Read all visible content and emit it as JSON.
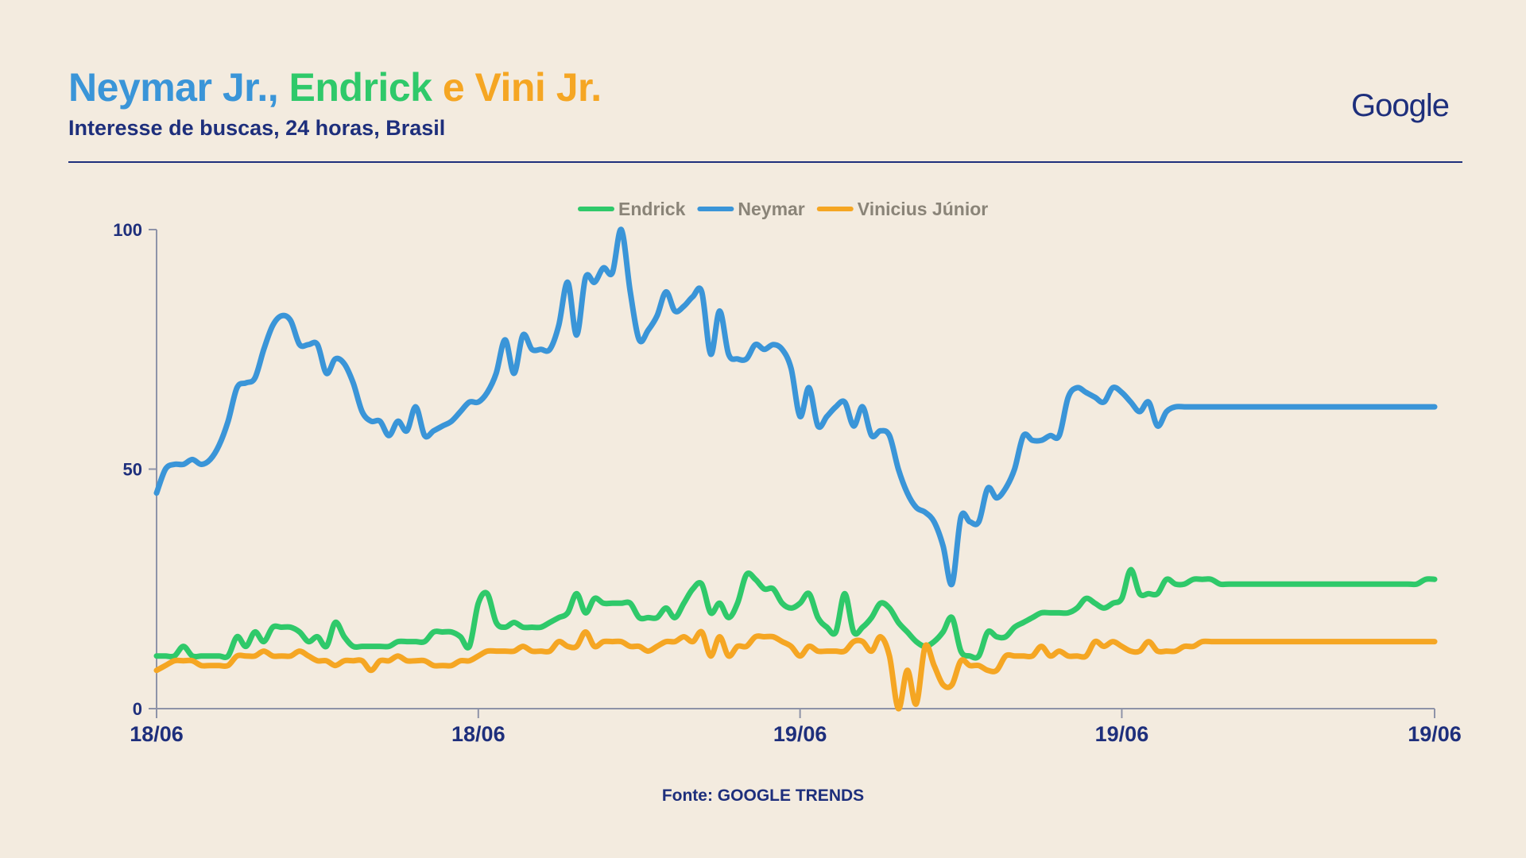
{
  "header": {
    "title_parts": [
      {
        "text": "Neymar Jr.,",
        "color": "#3A95D8"
      },
      {
        "text": " Endrick",
        "color": "#2FC96A"
      },
      {
        "text": " e",
        "color": "#F5A623"
      },
      {
        "text": " Vini Jr.",
        "color": "#F5A623"
      }
    ],
    "subtitle": "Interesse de buscas, 24 horas, Brasil",
    "brand": "Google"
  },
  "footer": {
    "source": "Fonte: GOOGLE TRENDS"
  },
  "chart_data": {
    "type": "line",
    "title": "Neymar Jr., Endrick e Vini Jr.",
    "subtitle": "Interesse de buscas, 24 horas, Brasil",
    "ylim": [
      0,
      100
    ],
    "yticks": [
      0,
      50,
      100
    ],
    "x_count": 144,
    "xticks": [
      {
        "index": 0,
        "label": "18/06"
      },
      {
        "index": 36,
        "label": "18/06"
      },
      {
        "index": 72,
        "label": "19/06"
      },
      {
        "index": 108,
        "label": "19/06"
      },
      {
        "index": 143,
        "label": "19/06"
      }
    ],
    "grid": false,
    "legend_position": "top-center",
    "legend": [
      "Endrick",
      "Neymar",
      "Vinicius Júnior"
    ],
    "series": [
      {
        "name": "Endrick",
        "color": "#2FC96A",
        "values": [
          11,
          11,
          11,
          13,
          11,
          11,
          11,
          11,
          11,
          15,
          13,
          16,
          14,
          17,
          17,
          17,
          16,
          14,
          15,
          13,
          18,
          15,
          13,
          13,
          13,
          13,
          13,
          14,
          14,
          14,
          14,
          16,
          16,
          16,
          15,
          13,
          22,
          24,
          18,
          17,
          18,
          17,
          17,
          17,
          18,
          19,
          20,
          24,
          20,
          23,
          22,
          22,
          22,
          22,
          19,
          19,
          19,
          21,
          19,
          22,
          25,
          26,
          20,
          22,
          19,
          22,
          28,
          27,
          25,
          25,
          22,
          21,
          22,
          24,
          19,
          17,
          16,
          24,
          16,
          17,
          19,
          22,
          21,
          18,
          16,
          14,
          13,
          14,
          16,
          19,
          12,
          11,
          11,
          16,
          15,
          15,
          17,
          18,
          19,
          20,
          20,
          20,
          20,
          21,
          23,
          22,
          21,
          22,
          23,
          29,
          24,
          24,
          24,
          27,
          26,
          26,
          27,
          27,
          27,
          26,
          26,
          26,
          26,
          26,
          26,
          26,
          26,
          26,
          26,
          26,
          26,
          26,
          26,
          26,
          26,
          26,
          26,
          26,
          26,
          26,
          26,
          26,
          27,
          27
        ]
      },
      {
        "name": "Neymar",
        "color": "#3A95D8",
        "values": [
          45,
          50,
          51,
          51,
          52,
          51,
          52,
          55,
          60,
          67,
          68,
          69,
          75,
          80,
          82,
          81,
          76,
          76,
          76,
          70,
          73,
          72,
          68,
          62,
          60,
          60,
          57,
          60,
          58,
          63,
          57,
          58,
          59,
          60,
          62,
          64,
          64,
          66,
          70,
          77,
          70,
          78,
          75,
          75,
          75,
          80,
          89,
          78,
          90,
          89,
          92,
          91,
          100,
          87,
          77,
          79,
          82,
          87,
          83,
          84,
          86,
          87,
          74,
          83,
          74,
          73,
          73,
          76,
          75,
          76,
          75,
          71,
          61,
          67,
          59,
          61,
          63,
          64,
          59,
          63,
          57,
          58,
          57,
          50,
          45,
          42,
          41,
          39,
          34,
          26,
          40,
          39,
          39,
          46,
          44,
          46,
          50,
          57,
          56,
          56,
          57,
          57,
          65,
          67,
          66,
          65,
          64,
          67,
          66,
          64,
          62,
          64,
          59,
          62,
          63,
          63,
          63,
          63,
          63,
          63,
          63,
          63,
          63,
          63,
          63,
          63,
          63,
          63,
          63,
          63,
          63,
          63,
          63,
          63,
          63,
          63,
          63,
          63,
          63,
          63,
          63,
          63,
          63,
          63
        ]
      },
      {
        "name": "Vinicius Júnior",
        "color": "#F5A623",
        "values": [
          8,
          9,
          10,
          10,
          10,
          9,
          9,
          9,
          9,
          11,
          11,
          11,
          12,
          11,
          11,
          11,
          12,
          11,
          10,
          10,
          9,
          10,
          10,
          10,
          8,
          10,
          10,
          11,
          10,
          10,
          10,
          9,
          9,
          9,
          10,
          10,
          11,
          12,
          12,
          12,
          12,
          13,
          12,
          12,
          12,
          14,
          13,
          13,
          16,
          13,
          14,
          14,
          14,
          13,
          13,
          12,
          13,
          14,
          14,
          15,
          14,
          16,
          11,
          15,
          11,
          13,
          13,
          15,
          15,
          15,
          14,
          13,
          11,
          13,
          12,
          12,
          12,
          12,
          14,
          14,
          12,
          15,
          11,
          0,
          8,
          1,
          13,
          9,
          5,
          5,
          10,
          9,
          9,
          8,
          8,
          11,
          11,
          11,
          11,
          13,
          11,
          12,
          11,
          11,
          11,
          14,
          13,
          14,
          13,
          12,
          12,
          14,
          12,
          12,
          12,
          13,
          13,
          14,
          14,
          14,
          14,
          14,
          14,
          14,
          14,
          14,
          14,
          14,
          14,
          14,
          14,
          14,
          14,
          14,
          14,
          14,
          14,
          14,
          14,
          14,
          14,
          14,
          14,
          14
        ]
      }
    ]
  }
}
